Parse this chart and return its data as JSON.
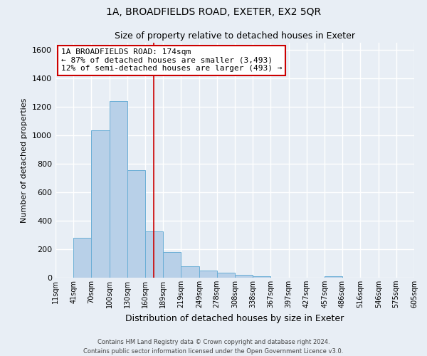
{
  "title": "1A, BROADFIELDS ROAD, EXETER, EX2 5QR",
  "subtitle": "Size of property relative to detached houses in Exeter",
  "xlabel": "Distribution of detached houses by size in Exeter",
  "ylabel": "Number of detached properties",
  "edges": [
    11,
    41,
    70,
    100,
    130,
    160,
    189,
    219,
    249,
    278,
    308,
    338,
    367,
    397,
    427,
    457,
    486,
    516,
    546,
    575,
    605
  ],
  "heights": [
    0,
    280,
    1035,
    1240,
    755,
    325,
    180,
    80,
    50,
    35,
    20,
    10,
    0,
    0,
    0,
    10,
    0,
    0,
    0,
    0
  ],
  "bin_labels": [
    "11sqm",
    "41sqm",
    "70sqm",
    "100sqm",
    "130sqm",
    "160sqm",
    "189sqm",
    "219sqm",
    "249sqm",
    "278sqm",
    "308sqm",
    "338sqm",
    "367sqm",
    "397sqm",
    "427sqm",
    "457sqm",
    "486sqm",
    "516sqm",
    "546sqm",
    "575sqm",
    "605sqm"
  ],
  "bar_color": "#b8d0e8",
  "bar_edge_color": "#6aaed6",
  "vline_x": 174,
  "vline_color": "#cc0000",
  "ylim": [
    0,
    1650
  ],
  "yticks": [
    0,
    200,
    400,
    600,
    800,
    1000,
    1200,
    1400,
    1600
  ],
  "annotation_title": "1A BROADFIELDS ROAD: 174sqm",
  "annotation_line1": "← 87% of detached houses are smaller (3,493)",
  "annotation_line2": "12% of semi-detached houses are larger (493) →",
  "annotation_box_color": "#cc0000",
  "footer_line1": "Contains HM Land Registry data © Crown copyright and database right 2024.",
  "footer_line2": "Contains public sector information licensed under the Open Government Licence v3.0.",
  "bg_color": "#e8eef5",
  "plot_bg_color": "#e8eef5",
  "grid_color": "#ffffff",
  "title_fontsize": 10,
  "subtitle_fontsize": 9,
  "ylabel_fontsize": 8,
  "xlabel_fontsize": 9,
  "tick_fontsize": 8,
  "xtick_fontsize": 7,
  "ann_fontsize": 8,
  "footer_fontsize": 6
}
